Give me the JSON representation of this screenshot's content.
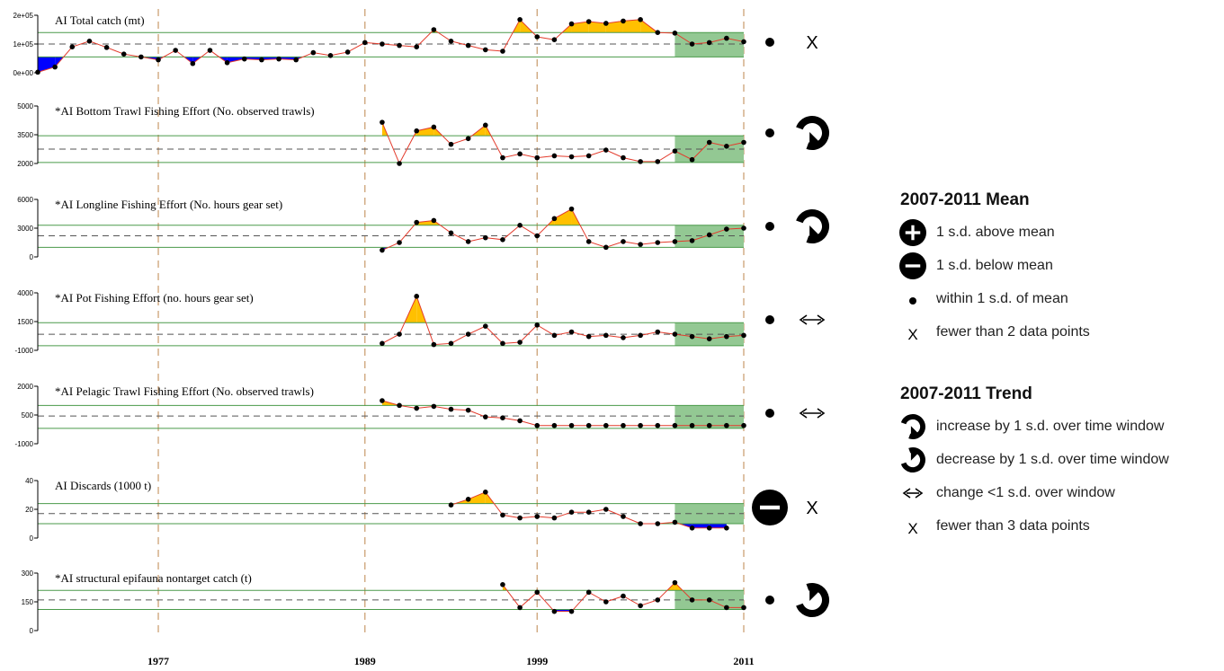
{
  "chart_data": {
    "type": "line",
    "x_axis_ticks": [
      "1977",
      "1989",
      "1999",
      "2011"
    ],
    "xlim": [
      1970,
      2011
    ],
    "panels": [
      {
        "title": "AI Total catch (mt)",
        "yticks": [
          "0e+00",
          "1e+05",
          "2e+05"
        ],
        "ylim": [
          0,
          200000
        ],
        "mean": 100000,
        "sd_upper": 140000,
        "sd_lower": 55000,
        "x": [
          1970,
          1971,
          1972,
          1973,
          1974,
          1975,
          1976,
          1977,
          1978,
          1979,
          1980,
          1981,
          1982,
          1983,
          1984,
          1985,
          1986,
          1987,
          1988,
          1989,
          1990,
          1991,
          1992,
          1993,
          1994,
          1995,
          1996,
          1997,
          1998,
          1999,
          2000,
          2001,
          2002,
          2003,
          2004,
          2005,
          2006,
          2007,
          2008,
          2009,
          2010,
          2011
        ],
        "values": [
          2000,
          20000,
          90000,
          110000,
          88000,
          65000,
          55000,
          45000,
          78000,
          32000,
          78000,
          35000,
          48000,
          45000,
          48000,
          45000,
          70000,
          60000,
          72000,
          105000,
          100000,
          95000,
          90000,
          150000,
          110000,
          95000,
          80000,
          75000,
          185000,
          125000,
          115000,
          170000,
          178000,
          172000,
          180000,
          185000,
          140000,
          138000,
          100000,
          105000,
          120000,
          108000
        ],
        "mean_2007_2011": "within",
        "trend_2007_2011": "fewer"
      },
      {
        "title": "*AI Bottom Trawl Fishing Effort (No. observed trawls)",
        "yticks": [
          "2000",
          "3500",
          "5000"
        ],
        "ylim": [
          2000,
          5000
        ],
        "mean": 2750,
        "sd_upper": 3450,
        "sd_lower": 2050,
        "x": [
          1990,
          1991,
          1992,
          1993,
          1994,
          1995,
          1996,
          1997,
          1998,
          1999,
          2000,
          2001,
          2002,
          2003,
          2004,
          2005,
          2006,
          2007,
          2008,
          2009,
          2010,
          2011
        ],
        "values": [
          4150,
          2000,
          3700,
          3900,
          3000,
          3300,
          4000,
          2300,
          2500,
          2300,
          2400,
          2350,
          2400,
          2700,
          2300,
          2100,
          2100,
          2650,
          2200,
          3100,
          2900,
          3100
        ],
        "mean_2007_2011": "within",
        "trend_2007_2011": "increase"
      },
      {
        "title": "*AI Longline Fishing Effort (No. hours gear set)",
        "yticks": [
          "0",
          "3000",
          "6000"
        ],
        "ylim": [
          0,
          6000
        ],
        "mean": 2200,
        "sd_upper": 3300,
        "sd_lower": 1000,
        "x": [
          1990,
          1991,
          1992,
          1993,
          1994,
          1995,
          1996,
          1997,
          1998,
          1999,
          2000,
          2001,
          2002,
          2003,
          2004,
          2005,
          2006,
          2007,
          2008,
          2009,
          2010,
          2011
        ],
        "values": [
          700,
          1500,
          3600,
          3800,
          2500,
          1600,
          2000,
          1800,
          3300,
          2200,
          4000,
          5000,
          1600,
          1000,
          1600,
          1300,
          1500,
          1600,
          1700,
          2300,
          2900,
          3000
        ],
        "mean_2007_2011": "within",
        "trend_2007_2011": "increase"
      },
      {
        "title": "*AI Pot Fishing Effort (no. hours gear set)",
        "yticks": [
          "-1000",
          "1500",
          "4000"
        ],
        "ylim": [
          -1000,
          4000
        ],
        "mean": 400,
        "sd_upper": 1400,
        "sd_lower": -600,
        "x": [
          1990,
          1991,
          1992,
          1993,
          1994,
          1995,
          1996,
          1997,
          1998,
          1999,
          2000,
          2001,
          2002,
          2003,
          2004,
          2005,
          2006,
          2007,
          2008,
          2009,
          2010,
          2011
        ],
        "values": [
          -400,
          400,
          3700,
          -500,
          -400,
          400,
          1100,
          -400,
          -300,
          1200,
          300,
          600,
          200,
          300,
          100,
          300,
          600,
          400,
          200,
          0,
          200,
          300
        ],
        "mean_2007_2011": "within",
        "trend_2007_2011": "change"
      },
      {
        "title": "*AI Pelagic Trawl Fishing Effort (No. observed trawls)",
        "yticks": [
          "-1000",
          "500",
          "2000"
        ],
        "ylim": [
          -1000,
          2000
        ],
        "mean": 450,
        "sd_upper": 1000,
        "sd_lower": -200,
        "x": [
          1990,
          1991,
          1992,
          1993,
          1994,
          1995,
          1996,
          1997,
          1998,
          1999,
          2000,
          2001,
          2002,
          2003,
          2004,
          2005,
          2006,
          2007,
          2008,
          2009,
          2010,
          2011
        ],
        "values": [
          1250,
          1000,
          850,
          950,
          800,
          750,
          400,
          350,
          200,
          -50,
          -50,
          -50,
          -50,
          -50,
          -50,
          -50,
          -50,
          -50,
          -50,
          -50,
          -50,
          -50
        ],
        "mean_2007_2011": "within",
        "trend_2007_2011": "change"
      },
      {
        "title": "AI Discards (1000 t)",
        "yticks": [
          "0",
          "20",
          "40"
        ],
        "ylim": [
          0,
          40
        ],
        "mean": 17,
        "sd_upper": 24,
        "sd_lower": 10,
        "x": [
          1994,
          1995,
          1996,
          1997,
          1998,
          1999,
          2000,
          2001,
          2002,
          2003,
          2004,
          2005,
          2006,
          2007,
          2008,
          2009,
          2010
        ],
        "values": [
          23,
          27,
          32,
          16,
          14,
          15,
          14,
          18,
          18,
          20,
          15,
          10,
          10,
          11,
          7,
          7,
          7
        ],
        "mean_2007_2011": "below",
        "trend_2007_2011": "fewer"
      },
      {
        "title": "*AI structural epifauna nontarget catch (t)",
        "yticks": [
          "0",
          "150",
          "300"
        ],
        "ylim": [
          0,
          300
        ],
        "mean": 160,
        "sd_upper": 210,
        "sd_lower": 110,
        "x": [
          1997,
          1998,
          1999,
          2000,
          2001,
          2002,
          2003,
          2004,
          2005,
          2006,
          2007,
          2008,
          2009,
          2010,
          2011
        ],
        "values": [
          240,
          120,
          200,
          100,
          100,
          200,
          150,
          180,
          130,
          160,
          250,
          160,
          160,
          120,
          120
        ],
        "mean_2007_2011": "within",
        "trend_2007_2011": "decrease"
      }
    ]
  },
  "legend": {
    "mean_title": "2007-2011 Mean",
    "mean_items": [
      {
        "symbol": "plus-circle",
        "label": "1 s.d. above mean"
      },
      {
        "symbol": "minus-circle",
        "label": "1 s.d. below mean"
      },
      {
        "symbol": "dot",
        "label": "within 1 s.d. of mean"
      },
      {
        "symbol": "x",
        "label": "fewer than 2 data points"
      }
    ],
    "trend_title": "2007-2011 Trend",
    "trend_items": [
      {
        "symbol": "increase-arrow",
        "label": "increase by 1 s.d. over time window"
      },
      {
        "symbol": "decrease-arrow",
        "label": "decrease by 1 s.d. over time window"
      },
      {
        "symbol": "double-arrow",
        "label": "change <1 s.d. over window"
      },
      {
        "symbol": "x",
        "label": "fewer than 3 data points"
      }
    ]
  },
  "colors": {
    "above": "#ffc000",
    "below": "#0000ff",
    "line": "#e33b2c",
    "band": "#4a9a4a",
    "sd_line": "#4a9a4a",
    "recent_shade": "#93c893",
    "vline": "#c89a6a"
  }
}
